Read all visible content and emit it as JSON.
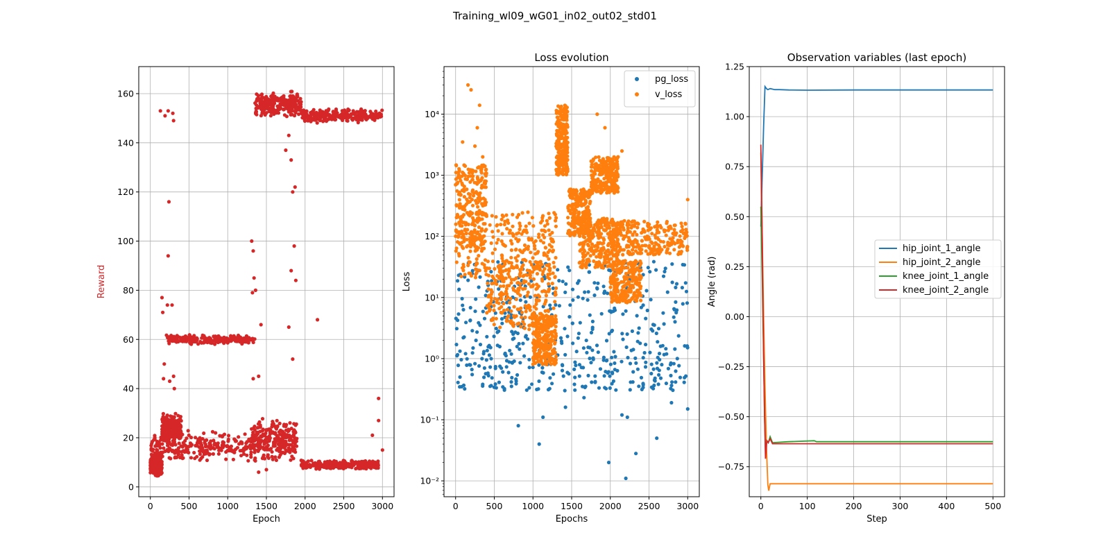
{
  "figure": {
    "suptitle": "Training_wl09_wG01_in02_out02_std01"
  },
  "chart_data": [
    {
      "type": "scatter",
      "title": "",
      "xlabel": "Epoch",
      "ylabel": "Reward",
      "ylabel_color": "#d62728",
      "xlim": [
        -150,
        3150
      ],
      "ylim": [
        -4,
        171
      ],
      "xticks": [
        0,
        500,
        1000,
        1500,
        2000,
        2500,
        3000
      ],
      "yticks": [
        0,
        20,
        40,
        60,
        80,
        100,
        120,
        140,
        160
      ],
      "grid": true,
      "series": [
        {
          "color": "#d62728",
          "clusters": [
            {
              "x": [
                0,
                150
              ],
              "y": [
                4,
                14
              ]
            },
            {
              "x": [
                0,
                1350
              ],
              "y": [
                10,
                23
              ]
            },
            {
              "x": [
                150,
                400
              ],
              "y": [
                18,
                30
              ]
            },
            {
              "x": [
                200,
                1350
              ],
              "y": [
                58,
                62
              ]
            },
            {
              "x": [
                1300,
                1900
              ],
              "y": [
                10,
                28
              ]
            },
            {
              "x": [
                1350,
                1950
              ],
              "y": [
                150,
                161
              ]
            },
            {
              "x": [
                1950,
                3000
              ],
              "y": [
                148,
                154
              ]
            },
            {
              "x": [
                1950,
                2950
              ],
              "y": [
                7,
                11
              ]
            }
          ],
          "points": [
            [
              130,
              153
            ],
            [
              190,
              151
            ],
            [
              230,
              153
            ],
            [
              290,
              152
            ],
            [
              300,
              149
            ],
            [
              240,
              116
            ],
            [
              230,
              94
            ],
            [
              150,
              77
            ],
            [
              220,
              74
            ],
            [
              280,
              74
            ],
            [
              160,
              71
            ],
            [
              180,
              50
            ],
            [
              170,
              44
            ],
            [
              250,
              43
            ],
            [
              300,
              45
            ],
            [
              310,
              40
            ],
            [
              1310,
              100
            ],
            [
              1330,
              96
            ],
            [
              1340,
              85
            ],
            [
              1320,
              79
            ],
            [
              1360,
              80
            ],
            [
              1330,
              44
            ],
            [
              1400,
              45
            ],
            [
              1430,
              66
            ],
            [
              1750,
              137
            ],
            [
              1790,
              143
            ],
            [
              1820,
              133
            ],
            [
              1840,
              120
            ],
            [
              1870,
              122
            ],
            [
              1860,
              98
            ],
            [
              1880,
              84
            ],
            [
              1820,
              88
            ],
            [
              1790,
              65
            ],
            [
              1840,
              52
            ],
            [
              2160,
              68
            ],
            [
              2950,
              36
            ],
            [
              2950,
              27
            ],
            [
              3000,
              15
            ],
            [
              2870,
              21
            ],
            [
              1400,
              6
            ],
            [
              1500,
              7
            ]
          ]
        }
      ]
    },
    {
      "type": "scatter",
      "title": "Loss evolution",
      "xlabel": "Epochs",
      "ylabel": "Loss",
      "yscale": "log",
      "xlim": [
        -150,
        3150
      ],
      "ylim": [
        0.0055,
        60000
      ],
      "xticks": [
        0,
        500,
        1000,
        1500,
        2000,
        2500,
        3000
      ],
      "yticks": [
        0.01,
        0.1,
        1,
        10,
        100,
        1000,
        10000
      ],
      "ytick_labels": [
        "10⁻²",
        "10⁻¹",
        "10⁰",
        "10¹",
        "10²",
        "10³",
        "10⁴"
      ],
      "grid": true,
      "legend": "top-right",
      "series": [
        {
          "name": "pg_loss",
          "color": "#1f77b4",
          "clusters": [
            {
              "x": [
                0,
                3000
              ],
              "y": [
                2,
                40
              ]
            },
            {
              "x": [
                0,
                3000
              ],
              "y": [
                0.3,
                2
              ]
            }
          ],
          "points": [
            [
              810,
              0.08
            ],
            [
              1080,
              0.04
            ],
            [
              1130,
              0.11
            ],
            [
              1980,
              0.02
            ],
            [
              2200,
              0.011
            ],
            [
              2330,
              0.028
            ],
            [
              2600,
              0.05
            ],
            [
              3000,
              0.15
            ],
            [
              2790,
              0.19
            ],
            [
              2150,
              0.12
            ],
            [
              2220,
              0.11
            ],
            [
              1420,
              0.16
            ],
            [
              1660,
              0.23
            ]
          ]
        },
        {
          "name": "v_loss",
          "color": "#ff7f0e",
          "clusters": [
            {
              "x": [
                0,
                400
              ],
              "y": [
                60,
                1500
              ]
            },
            {
              "x": [
                0,
                1300
              ],
              "y": [
                20,
                250
              ]
            },
            {
              "x": [
                400,
                1300
              ],
              "y": [
                3,
                40
              ]
            },
            {
              "x": [
                1000,
                1300
              ],
              "y": [
                0.8,
                5
              ]
            },
            {
              "x": [
                1300,
                1450
              ],
              "y": [
                1000,
                14000
              ]
            },
            {
              "x": [
                1450,
                1750
              ],
              "y": [
                100,
                600
              ]
            },
            {
              "x": [
                1750,
                2100
              ],
              "y": [
                500,
                2000
              ]
            },
            {
              "x": [
                1600,
                2100
              ],
              "y": [
                30,
                200
              ]
            },
            {
              "x": [
                2000,
                3000
              ],
              "y": [
                50,
                180
              ]
            },
            {
              "x": [
                2000,
                2400
              ],
              "y": [
                8,
                40
              ]
            }
          ],
          "points": [
            [
              160,
              30000
            ],
            [
              200,
              25000
            ],
            [
              310,
              14000
            ],
            [
              280,
              6000
            ],
            [
              350,
              2000
            ],
            [
              1830,
              10000
            ],
            [
              1930,
              6000
            ],
            [
              0,
              700
            ],
            [
              3000,
              400
            ],
            [
              90,
              3500
            ],
            [
              250,
              3000
            ],
            [
              2150,
              2500
            ],
            [
              2100,
              2000
            ]
          ]
        }
      ]
    },
    {
      "type": "line",
      "title": "Observation variables (last epoch)",
      "xlabel": "Step",
      "ylabel": "Angle (rad)",
      "xlim": [
        -25,
        525
      ],
      "ylim": [
        -0.9,
        1.25
      ],
      "xticks": [
        0,
        100,
        200,
        300,
        400,
        500
      ],
      "yticks": [
        -0.75,
        -0.5,
        -0.25,
        0.0,
        0.25,
        0.5,
        0.75,
        1.0,
        1.25
      ],
      "ytick_labels": [
        "−0.75",
        "−0.50",
        "−0.25",
        "0.00",
        "0.25",
        "0.50",
        "0.75",
        "1.00",
        "1.25"
      ],
      "grid": true,
      "legend": "center-right",
      "series": [
        {
          "name": "hip_joint_1_angle",
          "color": "#1f77b4",
          "x": [
            0,
            3,
            6,
            9,
            12,
            15,
            20,
            30,
            40,
            60,
            100,
            200,
            500
          ],
          "y": [
            0.45,
            0.7,
            0.95,
            1.15,
            1.14,
            1.135,
            1.14,
            1.135,
            1.135,
            1.133,
            1.132,
            1.133,
            1.133
          ]
        },
        {
          "name": "hip_joint_2_angle",
          "color": "#ff7f0e",
          "x": [
            0,
            3,
            6,
            9,
            12,
            15,
            17,
            20,
            30,
            100,
            500
          ],
          "y": [
            0.82,
            0.4,
            0.0,
            -0.35,
            -0.65,
            -0.84,
            -0.87,
            -0.835,
            -0.835,
            -0.835,
            -0.835
          ]
        },
        {
          "name": "knee_joint_1_angle",
          "color": "#2ca02c",
          "x": [
            0,
            3,
            6,
            8,
            10,
            13,
            16,
            20,
            25,
            60,
            115,
            120,
            500
          ],
          "y": [
            0.55,
            0.2,
            -0.2,
            -0.5,
            -0.67,
            -0.62,
            -0.63,
            -0.6,
            -0.63,
            -0.625,
            -0.62,
            -0.625,
            -0.625
          ]
        },
        {
          "name": "knee_joint_2_angle",
          "color": "#d62728",
          "x": [
            0,
            3,
            6,
            8,
            10,
            13,
            16,
            20,
            25,
            50,
            500
          ],
          "y": [
            0.86,
            0.4,
            -0.2,
            -0.5,
            -0.71,
            -0.62,
            -0.63,
            -0.61,
            -0.635,
            -0.635,
            -0.635
          ]
        }
      ]
    }
  ]
}
